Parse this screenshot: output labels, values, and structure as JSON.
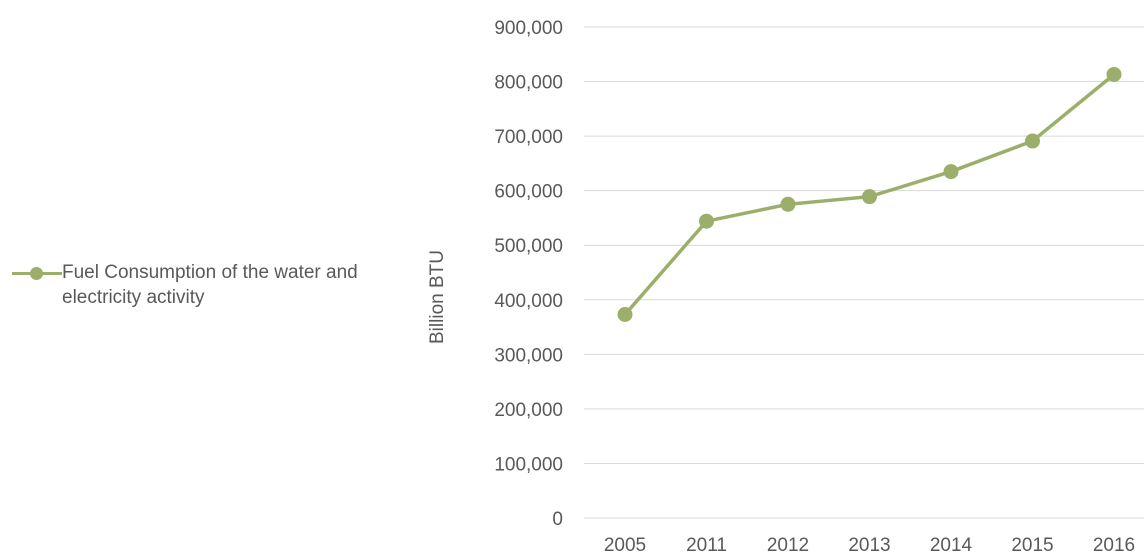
{
  "chart_data": {
    "type": "line",
    "title": "",
    "xlabel": "",
    "ylabel": "Billion BTU",
    "categories": [
      "2005",
      "2011",
      "2012",
      "2013",
      "2014",
      "2015",
      "2016"
    ],
    "series": [
      {
        "name": "Fuel Consumption of the water and electricity activity",
        "values": [
          373000,
          544000,
          575000,
          589000,
          635000,
          691000,
          813000
        ],
        "color": "#9BAF6B"
      }
    ],
    "ylim": [
      0,
      900000
    ],
    "yticks": [
      "0",
      "100,000",
      "200,000",
      "300,000",
      "400,000",
      "500,000",
      "600,000",
      "700,000",
      "800,000",
      "900,000"
    ],
    "yticks_values": [
      0,
      100000,
      200000,
      300000,
      400000,
      500000,
      600000,
      700000,
      800000,
      900000
    ],
    "grid": true,
    "legend_position": "left",
    "gridline_color": "#D9D9D9"
  }
}
